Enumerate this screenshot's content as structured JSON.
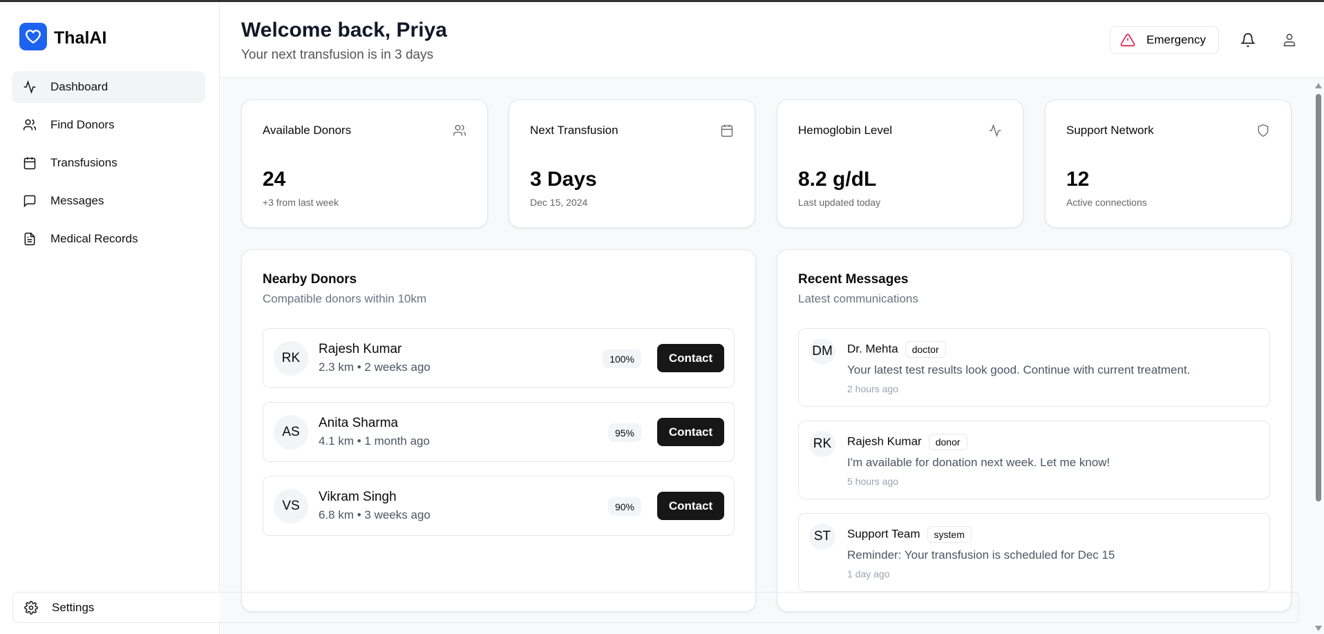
{
  "app": {
    "name": "ThalAI",
    "accent": "#1d63f0"
  },
  "sidebar": {
    "items": [
      {
        "label": "Dashboard",
        "icon": "activity-icon",
        "active": true
      },
      {
        "label": "Find Donors",
        "icon": "users-icon"
      },
      {
        "label": "Transfusions",
        "icon": "calendar-icon"
      },
      {
        "label": "Messages",
        "icon": "message-square-icon"
      },
      {
        "label": "Medical Records",
        "icon": "file-text-icon"
      }
    ],
    "settings": "Settings"
  },
  "header": {
    "title": "Welcome back, Priya",
    "subtitle": "Your next transfusion is in 3 days",
    "emergency": "Emergency",
    "emergency_color": "#e11d48"
  },
  "stats": [
    {
      "label": "Available Donors",
      "value": "24",
      "note": "+3 from last week",
      "icon": "users-icon"
    },
    {
      "label": "Next Transfusion",
      "value": "3 Days",
      "note": "Dec 15, 2024",
      "icon": "calendar-icon"
    },
    {
      "label": "Hemoglobin Level",
      "value": "8.2 g/dL",
      "note": "Last updated today",
      "icon": "activity-icon"
    },
    {
      "label": "Support Network",
      "value": "12",
      "note": "Active connections",
      "icon": "shield-icon"
    }
  ],
  "donors": {
    "title": "Nearby Donors",
    "subtitle": "Compatible donors within 10km",
    "contact_label": "Contact",
    "items": [
      {
        "initials": "RK",
        "name": "Rajesh Kumar",
        "meta": "2.3 km • 2 weeks ago",
        "match": "100%"
      },
      {
        "initials": "AS",
        "name": "Anita Sharma",
        "meta": "4.1 km • 1 month ago",
        "match": "95%"
      },
      {
        "initials": "VS",
        "name": "Vikram Singh",
        "meta": "6.8 km • 3 weeks ago",
        "match": "90%"
      }
    ]
  },
  "messages": {
    "title": "Recent Messages",
    "subtitle": "Latest communications",
    "items": [
      {
        "initials": "DM",
        "name": "Dr. Mehta",
        "tag": "doctor",
        "text": "Your latest test results look good. Continue with current treatment.",
        "time": "2 hours ago"
      },
      {
        "initials": "RK",
        "name": "Rajesh Kumar",
        "tag": "donor",
        "text": "I'm available for donation next week. Let me know!",
        "time": "5 hours ago"
      },
      {
        "initials": "ST",
        "name": "Support Team",
        "tag": "system",
        "text": "Reminder: Your transfusion is scheduled for Dec 15",
        "time": "1 day ago"
      }
    ]
  }
}
